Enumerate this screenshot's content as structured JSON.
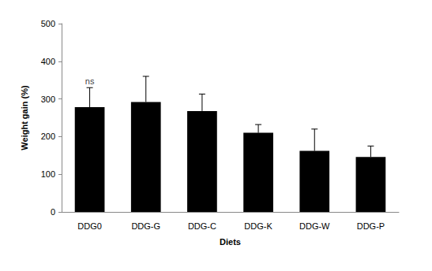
{
  "chart_data": {
    "type": "bar",
    "x_label": "Diets",
    "y_label": "Weight gain (%)",
    "categories": [
      "DDG0",
      "DDG-G",
      "DDG-C",
      "DDG-K",
      "DDG-W",
      "DDG-P"
    ],
    "values": [
      278,
      292,
      268,
      210,
      162,
      146
    ],
    "errors": [
      52,
      68,
      45,
      22,
      58,
      29
    ],
    "color": "#000000",
    "ylim": [
      0,
      500
    ],
    "yticks": [
      0,
      100,
      200,
      300,
      400,
      500
    ],
    "grid": false,
    "annotations": [
      {
        "text": "ns",
        "category": "DDG0"
      }
    ]
  }
}
